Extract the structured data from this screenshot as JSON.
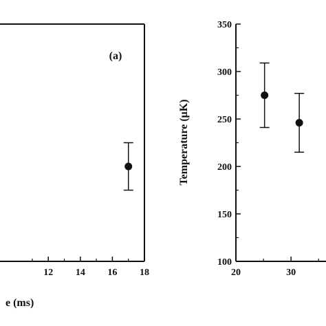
{
  "chart_data": [
    {
      "panel": "(a)",
      "type": "scatter",
      "xlabel": "e (ms)",
      "ylabel": "",
      "xlim": [
        8.9,
        18
      ],
      "ylim": [
        100,
        350
      ],
      "x_ticks": [
        "12",
        "14",
        "16",
        "18"
      ],
      "y_ticks": [],
      "grid": false,
      "series": [
        {
          "points": [
            {
              "x": 17,
              "y": 200,
              "yerr_low": 25,
              "yerr_high": 25
            }
          ]
        }
      ]
    },
    {
      "panel": "",
      "type": "scatter",
      "xlabel": "",
      "ylabel": "Temperature (μK)",
      "xlim": [
        20,
        36.6
      ],
      "ylim": [
        100,
        350
      ],
      "x_ticks": [
        "20",
        "30"
      ],
      "y_ticks": [
        "100",
        "150",
        "200",
        "250",
        "300",
        "350"
      ],
      "grid": false,
      "series": [
        {
          "points": [
            {
              "x": 25.2,
              "y": 275,
              "yerr_low": 34,
              "yerr_high": 34
            },
            {
              "x": 31.5,
              "y": 246,
              "yerr_low": 31,
              "yerr_high": 31
            }
          ]
        }
      ]
    }
  ],
  "colors": {
    "ink": "#111111",
    "background": "#ffffff"
  }
}
